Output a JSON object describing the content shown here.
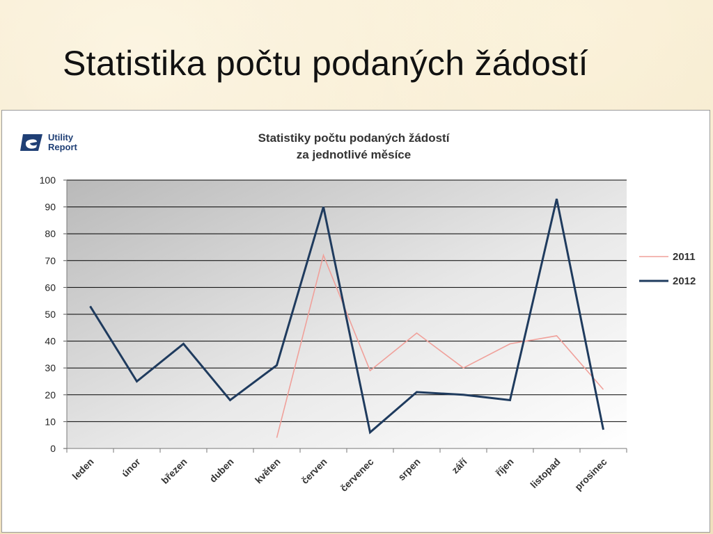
{
  "slide": {
    "title": "Statistika počtu podaných žádostí"
  },
  "logo": {
    "line1": "Utility",
    "line2": "Report"
  },
  "chart_data": {
    "type": "line",
    "title_line1": "Statistiky počtu podaných žádostí",
    "title_line2": "za jednotlivé měsíce",
    "categories": [
      "leden",
      "únor",
      "březen",
      "duben",
      "květen",
      "červen",
      "červenec",
      "srpen",
      "září",
      "říjen",
      "listopad",
      "prosinec"
    ],
    "ylim": [
      0,
      100
    ],
    "yticks": [
      0,
      10,
      20,
      30,
      40,
      50,
      60,
      70,
      80,
      90,
      100
    ],
    "grid": true,
    "legend_position": "right",
    "series": [
      {
        "name": "2011",
        "color": "#f0a09a",
        "values": [
          null,
          null,
          null,
          null,
          4,
          72,
          29,
          43,
          30,
          39,
          42,
          22
        ]
      },
      {
        "name": "2012",
        "color": "#1f3b5e",
        "values": [
          53,
          25,
          39,
          18,
          31,
          90,
          6,
          21,
          20,
          18,
          93,
          7
        ]
      }
    ]
  }
}
